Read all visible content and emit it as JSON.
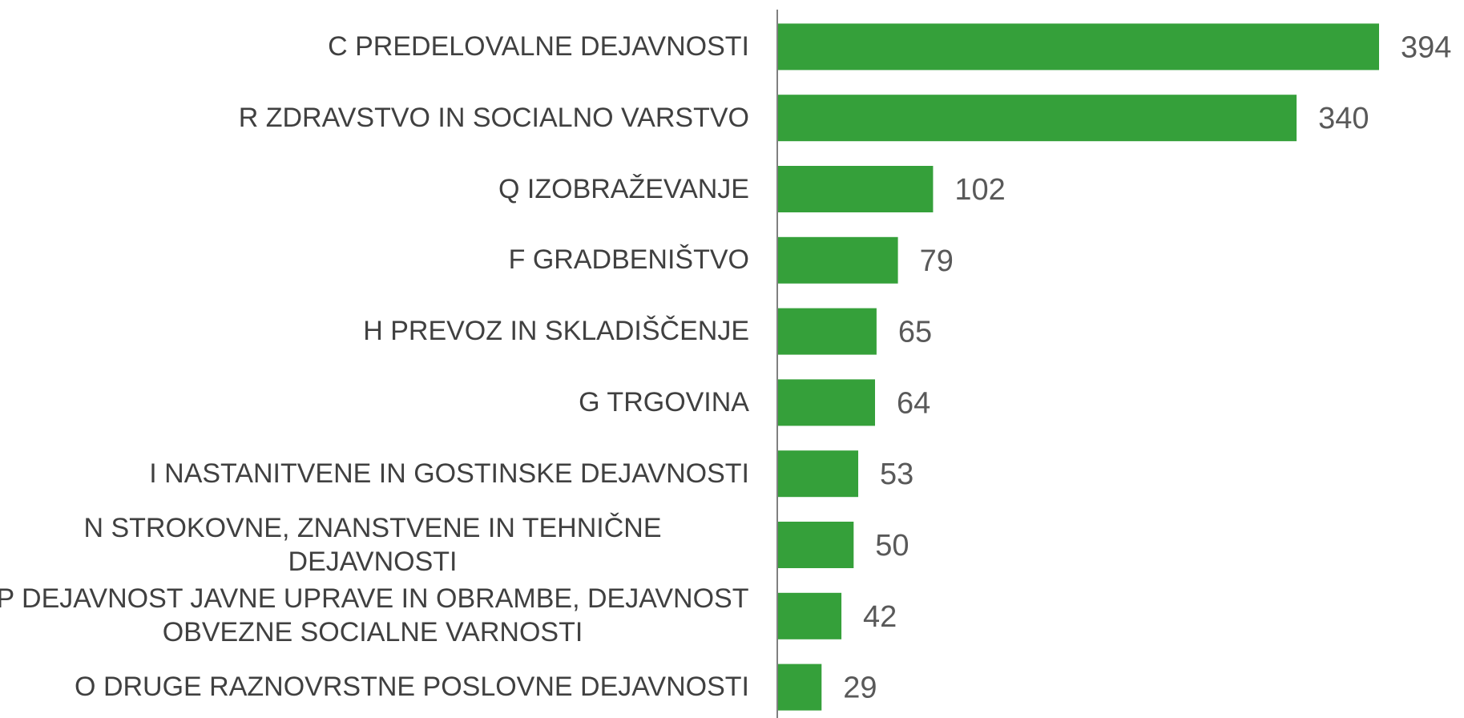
{
  "chart_data": {
    "type": "bar",
    "orientation": "horizontal",
    "categories": [
      "C PREDELOVALNE DEJAVNOSTI",
      "R ZDRAVSTVO IN SOCIALNO VARSTVO",
      "Q IZOBRAŽEVANJE",
      "F GRADBENIŠTVO",
      "H PREVOZ IN SKLADIŠČENJE",
      "G TRGOVINA",
      "I NASTANITVENE IN GOSTINSKE DEJAVNOSTI",
      "N STROKOVNE, ZNANSTVENE IN TEHNIČNE DEJAVNOSTI",
      "P DEJAVNOST JAVNE UPRAVE IN OBRAMBE, DEJAVNOST OBVEZNE SOCIALNE VARNOSTI",
      "O DRUGE RAZNOVRSTNE POSLOVNE DEJAVNOSTI"
    ],
    "values": [
      394,
      340,
      102,
      79,
      65,
      64,
      53,
      50,
      42,
      29
    ],
    "color": "#35a03a"
  }
}
